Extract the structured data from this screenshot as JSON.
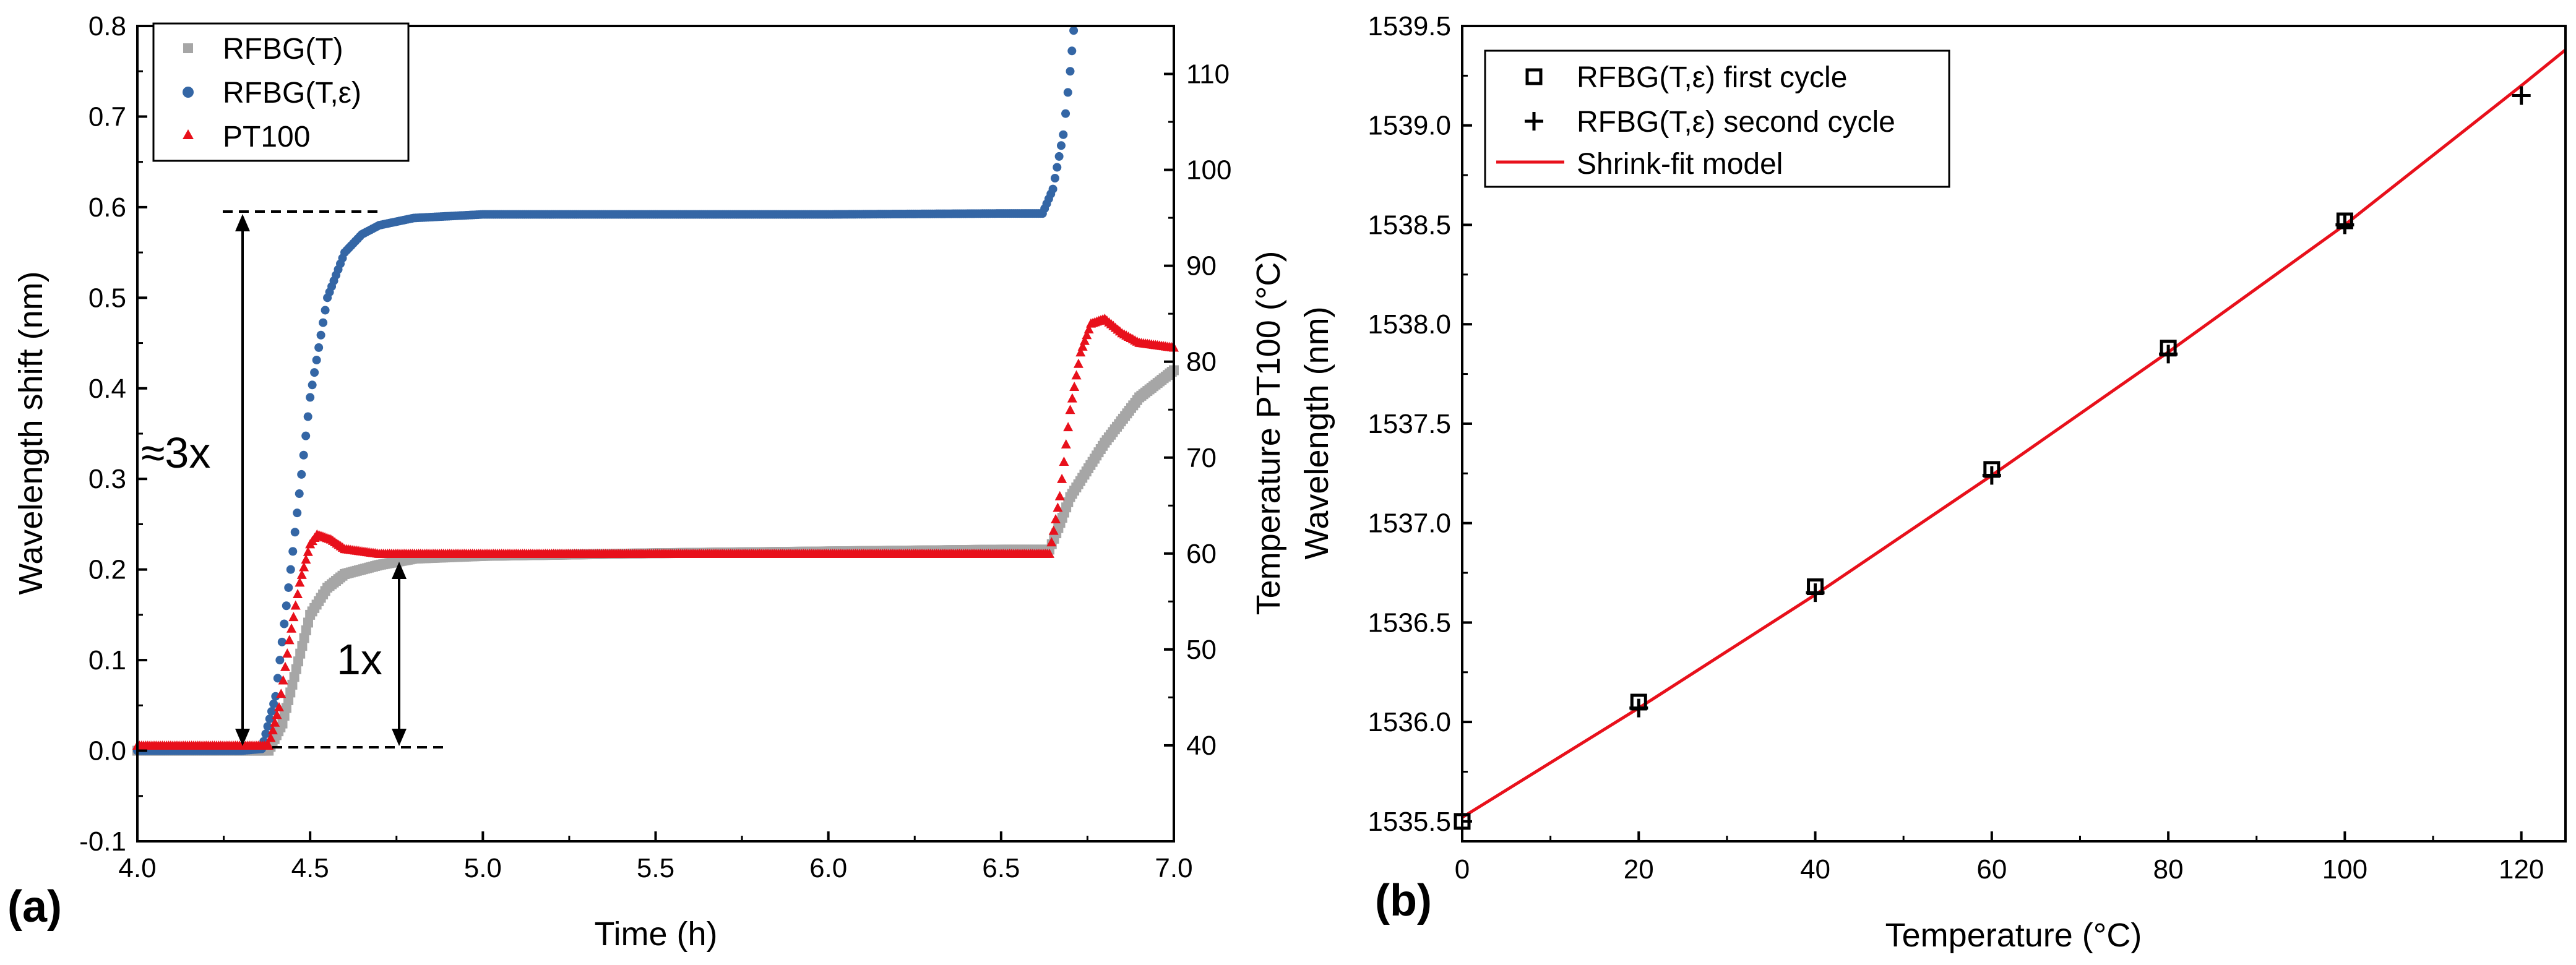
{
  "chart_data": [
    {
      "panel": "(a)",
      "type": "scatter",
      "title": "",
      "xlabel": "Time (h)",
      "ylabel": "Wavelength shift (nm)",
      "y2label": "Temperature PT100 (°C)",
      "xlim": [
        4.0,
        7.0
      ],
      "ylim": [
        -0.1,
        0.8
      ],
      "y2lim": [
        30,
        115
      ],
      "xticks": [
        "4.0",
        "4.5",
        "5.0",
        "5.5",
        "6.0",
        "6.5",
        "7.0"
      ],
      "yticks": [
        "-0.1",
        "0.0",
        "0.1",
        "0.2",
        "0.3",
        "0.4",
        "0.5",
        "0.6",
        "0.7",
        "0.8"
      ],
      "y2ticks": [
        "40",
        "50",
        "60",
        "70",
        "80",
        "90",
        "100",
        "110"
      ],
      "grid": false,
      "legend_position": "top-left",
      "series": [
        {
          "name": "RFBG(T)",
          "marker": "square",
          "color": "#a6a6a6",
          "axis": "left",
          "points": [
            [
              4.0,
              0.0
            ],
            [
              4.3,
              0.0
            ],
            [
              4.38,
              0.0
            ],
            [
              4.42,
              0.03
            ],
            [
              4.46,
              0.09
            ],
            [
              4.5,
              0.15
            ],
            [
              4.55,
              0.18
            ],
            [
              4.6,
              0.195
            ],
            [
              4.7,
              0.205
            ],
            [
              4.8,
              0.212
            ],
            [
              5.0,
              0.215
            ],
            [
              5.5,
              0.218
            ],
            [
              6.0,
              0.22
            ],
            [
              6.5,
              0.222
            ],
            [
              6.64,
              0.222
            ],
            [
              6.66,
              0.24
            ],
            [
              6.7,
              0.28
            ],
            [
              6.8,
              0.34
            ],
            [
              6.9,
              0.39
            ],
            [
              7.0,
              0.42
            ]
          ]
        },
        {
          "name": "RFBG(T,ε)",
          "marker": "circle",
          "color": "#3466a5",
          "axis": "left",
          "points": [
            [
              4.0,
              0.0
            ],
            [
              4.3,
              0.0
            ],
            [
              4.36,
              0.002
            ],
            [
              4.4,
              0.06
            ],
            [
              4.45,
              0.22
            ],
            [
              4.5,
              0.39
            ],
            [
              4.55,
              0.5
            ],
            [
              4.6,
              0.55
            ],
            [
              4.65,
              0.57
            ],
            [
              4.7,
              0.58
            ],
            [
              4.8,
              0.588
            ],
            [
              5.0,
              0.592
            ],
            [
              5.5,
              0.592
            ],
            [
              6.0,
              0.592
            ],
            [
              6.5,
              0.593
            ],
            [
              6.62,
              0.593
            ],
            [
              6.65,
              0.62
            ],
            [
              6.68,
              0.68
            ],
            [
              6.7,
              0.75
            ],
            [
              6.71,
              0.795
            ]
          ]
        },
        {
          "name": "PT100",
          "marker": "triangle",
          "color": "#e8101b",
          "axis": "right",
          "points": [
            [
              4.0,
              40.0
            ],
            [
              4.38,
              40.0
            ],
            [
              4.41,
              44.0
            ],
            [
              4.44,
              51.0
            ],
            [
              4.47,
              57.0
            ],
            [
              4.5,
              61.0
            ],
            [
              4.52,
              62.0
            ],
            [
              4.56,
              61.5
            ],
            [
              4.6,
              60.5
            ],
            [
              4.7,
              60.0
            ],
            [
              5.0,
              60.0
            ],
            [
              5.5,
              60.0
            ],
            [
              6.0,
              60.0
            ],
            [
              6.5,
              60.0
            ],
            [
              6.64,
              60.0
            ],
            [
              6.67,
              66.0
            ],
            [
              6.7,
              75.0
            ],
            [
              6.73,
              81.0
            ],
            [
              6.76,
              84.0
            ],
            [
              6.8,
              84.5
            ],
            [
              6.85,
              83.0
            ],
            [
              6.9,
              82.0
            ],
            [
              7.0,
              81.5
            ]
          ]
        }
      ],
      "annotations": [
        "≈3x",
        "1x"
      ]
    },
    {
      "panel": "(b)",
      "type": "scatter",
      "title": "",
      "xlabel": "Temperature (°C)",
      "ylabel": "Wavelength (nm)",
      "xlim": [
        0,
        125
      ],
      "ylim": [
        1535.4,
        1539.5
      ],
      "xticks": [
        "0",
        "20",
        "40",
        "60",
        "80",
        "100",
        "120"
      ],
      "yticks": [
        "1535.5",
        "1536.0",
        "1536.5",
        "1537.0",
        "1537.5",
        "1538.0",
        "1538.5",
        "1539.0",
        "1539.5"
      ],
      "grid": false,
      "legend_position": "top-left",
      "series": [
        {
          "name": "RFBG(T,ε) first cycle",
          "marker": "open-square",
          "color": "#000000",
          "points": [
            [
              0,
              1535.5
            ],
            [
              20,
              1536.1
            ],
            [
              40,
              1536.68
            ],
            [
              60,
              1537.27
            ],
            [
              80,
              1537.88
            ],
            [
              100,
              1538.52
            ]
          ]
        },
        {
          "name": "RFBG(T,ε) second cycle",
          "marker": "plus",
          "color": "#000000",
          "points": [
            [
              20,
              1536.07
            ],
            [
              40,
              1536.65
            ],
            [
              60,
              1537.24
            ],
            [
              80,
              1537.85
            ],
            [
              100,
              1538.5
            ],
            [
              120,
              1539.15
            ]
          ]
        },
        {
          "name": "Shrink-fit model",
          "marker": "line",
          "color": "#e8101b",
          "points": [
            [
              0,
              1535.52
            ],
            [
              20,
              1536.07
            ],
            [
              40,
              1536.64
            ],
            [
              60,
              1537.24
            ],
            [
              80,
              1537.86
            ],
            [
              100,
              1538.5
            ],
            [
              120,
              1539.2
            ],
            [
              125,
              1539.38
            ]
          ]
        }
      ]
    }
  ]
}
